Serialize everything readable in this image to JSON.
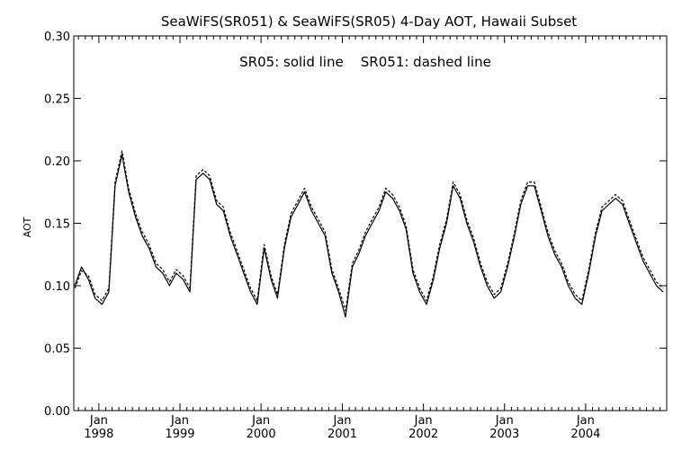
{
  "chart_data": {
    "type": "line",
    "title": "SeaWiFS(SR051) & SeaWiFS(SR05) 4-Day AOT, Hawaii Subset",
    "annotation": "SR05: solid line    SR051: dashed line",
    "xlabel": "",
    "ylabel": "AOT",
    "xlim": [
      "1997-09-10",
      "2004-12-31"
    ],
    "ylim": [
      0.0,
      0.3
    ],
    "y_ticks": [
      "0.00",
      "0.05",
      "0.10",
      "0.15",
      "0.20",
      "0.25",
      "0.30"
    ],
    "x_ticks": [
      {
        "month": "Jan",
        "year": "1998"
      },
      {
        "month": "Jan",
        "year": "1999"
      },
      {
        "month": "Jan",
        "year": "2000"
      },
      {
        "month": "Jan",
        "year": "2001"
      },
      {
        "month": "Jan",
        "year": "2002"
      },
      {
        "month": "Jan",
        "year": "2003"
      },
      {
        "month": "Jan",
        "year": "2004"
      }
    ],
    "grid": false,
    "line_color": "#000000",
    "series": [
      {
        "style": "solid",
        "x": [
          "1997-09",
          "1997-10",
          "1997-11",
          "1997-12",
          "1998-01",
          "1998-02",
          "1998-03",
          "1998-04",
          "1998-05",
          "1998-06",
          "1998-07",
          "1998-08",
          "1998-09",
          "1998-10",
          "1998-11",
          "1998-12",
          "1999-01",
          "1999-02",
          "1999-03",
          "1999-04",
          "1999-05",
          "1999-06",
          "1999-07",
          "1999-08",
          "1999-09",
          "1999-10",
          "1999-11",
          "1999-12",
          "2000-01",
          "2000-02",
          "2000-03",
          "2000-04",
          "2000-05",
          "2000-06",
          "2000-07",
          "2000-08",
          "2000-09",
          "2000-10",
          "2000-11",
          "2000-12",
          "2001-01",
          "2001-02",
          "2001-03",
          "2001-04",
          "2001-05",
          "2001-06",
          "2001-07",
          "2001-08",
          "2001-09",
          "2001-10",
          "2001-11",
          "2001-12",
          "2002-01",
          "2002-02",
          "2002-03",
          "2002-04",
          "2002-05",
          "2002-06",
          "2002-07",
          "2002-08",
          "2002-09",
          "2002-10",
          "2002-11",
          "2002-12",
          "2003-01",
          "2003-02",
          "2003-03",
          "2003-04",
          "2003-05",
          "2003-06",
          "2003-07",
          "2003-08",
          "2003-09",
          "2003-10",
          "2003-11",
          "2003-12",
          "2004-01",
          "2004-02",
          "2004-03",
          "2004-04",
          "2004-05",
          "2004-06",
          "2004-07",
          "2004-08",
          "2004-09",
          "2004-10",
          "2004-11",
          "2004-12"
        ],
        "values": [
          0.1,
          0.115,
          0.105,
          0.09,
          0.085,
          0.095,
          0.18,
          0.205,
          0.175,
          0.155,
          0.14,
          0.13,
          0.115,
          0.11,
          0.1,
          0.11,
          0.105,
          0.095,
          0.185,
          0.19,
          0.185,
          0.165,
          0.16,
          0.14,
          0.125,
          0.11,
          0.095,
          0.085,
          0.13,
          0.105,
          0.09,
          0.13,
          0.155,
          0.165,
          0.175,
          0.16,
          0.15,
          0.14,
          0.11,
          0.095,
          0.075,
          0.115,
          0.125,
          0.14,
          0.15,
          0.16,
          0.175,
          0.17,
          0.16,
          0.145,
          0.11,
          0.095,
          0.085,
          0.105,
          0.13,
          0.15,
          0.18,
          0.17,
          0.15,
          0.135,
          0.115,
          0.1,
          0.09,
          0.095,
          0.115,
          0.14,
          0.165,
          0.18,
          0.18,
          0.16,
          0.14,
          0.125,
          0.115,
          0.1,
          0.09,
          0.085,
          0.11,
          0.14,
          0.16,
          0.165,
          0.17,
          0.165,
          0.15,
          0.135,
          0.12,
          0.11,
          0.1,
          0.095
        ]
      },
      {
        "style": "dashed",
        "x": [
          "1997-09",
          "1997-10",
          "1997-11",
          "1997-12",
          "1998-01",
          "1998-02",
          "1998-03",
          "1998-04",
          "1998-05",
          "1998-06",
          "1998-07",
          "1998-08",
          "1998-09",
          "1998-10",
          "1998-11",
          "1998-12",
          "1999-01",
          "1999-02",
          "1999-03",
          "1999-04",
          "1999-05",
          "1999-06",
          "1999-07",
          "1999-08",
          "1999-09",
          "1999-10",
          "1999-11",
          "1999-12",
          "2000-01",
          "2000-02",
          "2000-03",
          "2000-04",
          "2000-05",
          "2000-06",
          "2000-07",
          "2000-08",
          "2000-09",
          "2000-10",
          "2000-11",
          "2000-12",
          "2001-01",
          "2001-02",
          "2001-03",
          "2001-04",
          "2001-05",
          "2001-06",
          "2001-07",
          "2001-08",
          "2001-09",
          "2001-10",
          "2001-11",
          "2001-12",
          "2002-01",
          "2002-02",
          "2002-03",
          "2002-04",
          "2002-05",
          "2002-06",
          "2002-07",
          "2002-08",
          "2002-09",
          "2002-10",
          "2002-11",
          "2002-12",
          "2003-01",
          "2003-02",
          "2003-03",
          "2003-04",
          "2003-05",
          "2003-06",
          "2003-07",
          "2003-08",
          "2003-09",
          "2003-10",
          "2003-11",
          "2003-12",
          "2004-01",
          "2004-02",
          "2004-03",
          "2004-04",
          "2004-05",
          "2004-06",
          "2004-07",
          "2004-08",
          "2004-09",
          "2004-10",
          "2004-11",
          "2004-12"
        ],
        "values": [
          0.098,
          0.112,
          0.108,
          0.093,
          0.088,
          0.098,
          0.183,
          0.208,
          0.178,
          0.158,
          0.143,
          0.133,
          0.118,
          0.113,
          0.103,
          0.113,
          0.108,
          0.098,
          0.188,
          0.193,
          0.188,
          0.168,
          0.163,
          0.143,
          0.128,
          0.113,
          0.098,
          0.088,
          0.133,
          0.108,
          0.093,
          0.133,
          0.158,
          0.168,
          0.178,
          0.163,
          0.153,
          0.143,
          0.113,
          0.098,
          0.08,
          0.118,
          0.128,
          0.143,
          0.153,
          0.163,
          0.178,
          0.173,
          0.163,
          0.148,
          0.113,
          0.098,
          0.088,
          0.108,
          0.133,
          0.153,
          0.183,
          0.173,
          0.153,
          0.138,
          0.118,
          0.103,
          0.093,
          0.098,
          0.118,
          0.143,
          0.168,
          0.183,
          0.183,
          0.163,
          0.143,
          0.128,
          0.118,
          0.103,
          0.093,
          0.088,
          0.113,
          0.143,
          0.163,
          0.168,
          0.173,
          0.168,
          0.153,
          0.138,
          0.123,
          0.113,
          0.103,
          0.098
        ]
      }
    ]
  }
}
